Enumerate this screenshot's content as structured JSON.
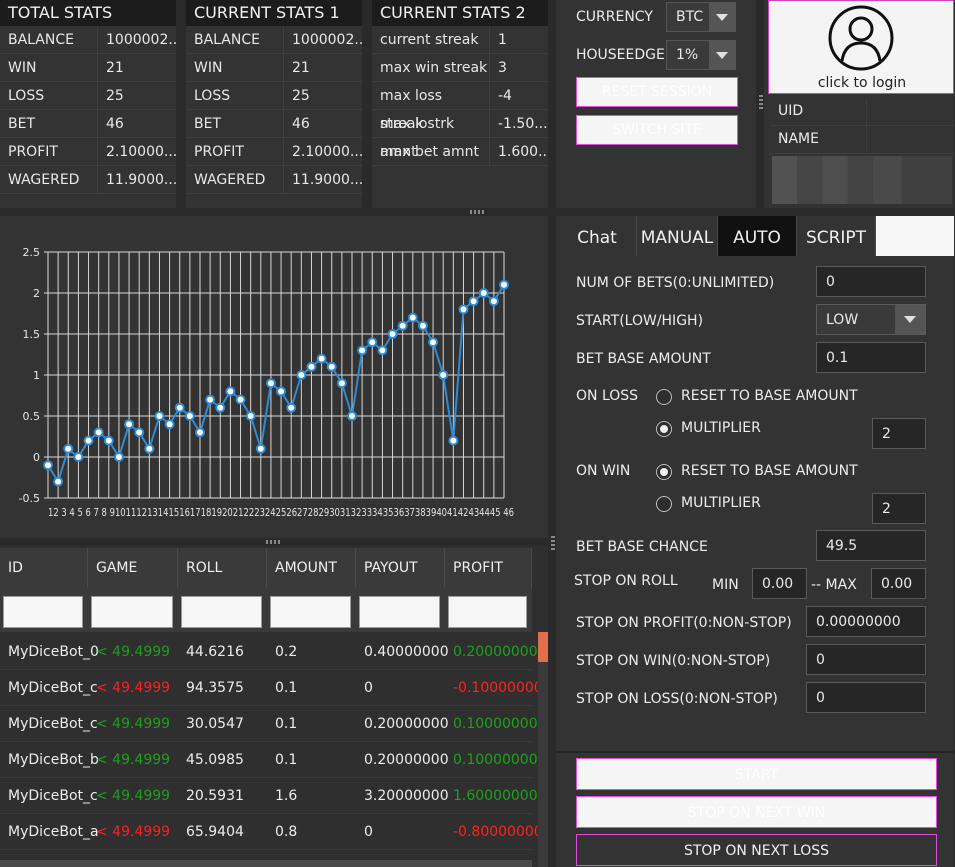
{
  "stats": {
    "total": {
      "title": "TOTAL STATS",
      "rows": [
        {
          "label": "BALANCE",
          "value": "1000002..."
        },
        {
          "label": "WIN",
          "value": "21"
        },
        {
          "label": "LOSS",
          "value": "25"
        },
        {
          "label": "BET",
          "value": "46"
        },
        {
          "label": "PROFIT",
          "value": "2.10000..."
        },
        {
          "label": "WAGERED",
          "value": "11.9000..."
        }
      ]
    },
    "current1": {
      "title": "CURRENT STATS 1",
      "rows": [
        {
          "label": "BALANCE",
          "value": "1000002..."
        },
        {
          "label": "WIN",
          "value": "21"
        },
        {
          "label": "LOSS",
          "value": "25"
        },
        {
          "label": "BET",
          "value": "46"
        },
        {
          "label": "PROFIT",
          "value": "2.10000..."
        },
        {
          "label": "WAGERED",
          "value": "11.9000..."
        }
      ]
    },
    "current2": {
      "title": "CURRENT STATS 2",
      "rows": [
        {
          "label": "current streak",
          "value": "1"
        },
        {
          "label": "max win streak",
          "value": "3"
        },
        {
          "label": "max loss streak",
          "value": "-4"
        },
        {
          "label": "max lostrk amnt",
          "value": "-1.50..."
        },
        {
          "label": "max bet amnt",
          "value": "1.600..."
        }
      ]
    }
  },
  "settings": {
    "currency_label": "CURRENCY",
    "currency_value": "BTC",
    "houseedge_label": "HOUSEEDGE",
    "houseedge_value": "1%",
    "reset_session": "RESET SESSION",
    "switch_site": "SWITCH SITE"
  },
  "account": {
    "login_text": "click to login",
    "uid_label": "UID",
    "name_label": "NAME"
  },
  "tabs": [
    "Chat",
    "MANUAL",
    "AUTO",
    "SCRIPT"
  ],
  "active_tab": "AUTO",
  "auto": {
    "num_bets_label": "NUM OF BETS(0:UNLIMITED)",
    "num_bets_value": "0",
    "start_label": "START(LOW/HIGH)",
    "start_value": "LOW",
    "bet_base_amount_label": "BET BASE AMOUNT",
    "bet_base_amount_value": "0.1",
    "on_loss_label": "ON LOSS",
    "on_loss_reset": "RESET TO BASE AMOUNT",
    "on_loss_multiplier": "MULTIPLIER",
    "on_loss_multiplier_value": "2",
    "on_win_label": "ON WIN",
    "on_win_reset": "RESET TO BASE AMOUNT",
    "on_win_multiplier": "MULTIPLIER",
    "on_win_multiplier_value": "2",
    "bet_base_chance_label": "BET BASE CHANCE",
    "bet_base_chance_value": "49.5",
    "stop_on_roll_label": "STOP ON ROLL",
    "min_label": "MIN",
    "min_value": "0.00",
    "max_label": "-- MAX",
    "max_value": "0.00",
    "stop_profit_label": "STOP ON PROFIT(0:NON-STOP)",
    "stop_profit_value": "0.00000000",
    "stop_win_label": "STOP ON WIN(0:NON-STOP)",
    "stop_win_value": "0",
    "stop_loss_label": "STOP ON LOSS(0:NON-STOP)",
    "stop_loss_value": "0",
    "start_button": "START",
    "stop_next_win": "STOP ON NEXT WIN",
    "stop_next_loss": "STOP ON NEXT LOSS"
  },
  "history": {
    "columns": [
      "ID",
      "GAME",
      "ROLL",
      "AMOUNT",
      "PAYOUT",
      "PROFIT"
    ],
    "rows": [
      {
        "id": "MyDiceBot_0",
        "game": "< 49.4999",
        "win": true,
        "roll": "44.6216",
        "amount": "0.2",
        "payout": "0.40000000",
        "profit": "0.20000000"
      },
      {
        "id": "MyDiceBot_c",
        "game": "< 49.4999",
        "win": false,
        "roll": "94.3575",
        "amount": "0.1",
        "payout": "0",
        "profit": "-0.10000000"
      },
      {
        "id": "MyDiceBot_c",
        "game": "< 49.4999",
        "win": true,
        "roll": "30.0547",
        "amount": "0.1",
        "payout": "0.20000000",
        "profit": "0.10000000"
      },
      {
        "id": "MyDiceBot_b",
        "game": "< 49.4999",
        "win": true,
        "roll": "45.0985",
        "amount": "0.1",
        "payout": "0.20000000",
        "profit": "0.10000000"
      },
      {
        "id": "MyDiceBot_c",
        "game": "< 49.4999",
        "win": true,
        "roll": "20.5931",
        "amount": "1.6",
        "payout": "3.20000000",
        "profit": "1.60000000"
      },
      {
        "id": "MyDiceBot_a",
        "game": "< 49.4999",
        "win": false,
        "roll": "65.9404",
        "amount": "0.8",
        "payout": "0",
        "profit": "-0.80000000"
      }
    ]
  },
  "chart_data": {
    "type": "line",
    "x": [
      1,
      2,
      3,
      4,
      5,
      6,
      7,
      8,
      9,
      10,
      11,
      12,
      13,
      14,
      15,
      16,
      17,
      18,
      19,
      20,
      21,
      22,
      23,
      24,
      25,
      26,
      27,
      28,
      29,
      30,
      31,
      32,
      33,
      34,
      35,
      36,
      37,
      38,
      39,
      40,
      41,
      42,
      43,
      44,
      45,
      46
    ],
    "x_tick_labels": "12 3 4 5 6 7 8 9101112131415161718192021222324252627282930313233343536373839404142434445 46",
    "values": [
      -0.1,
      -0.3,
      0.1,
      0,
      0.2,
      0.3,
      0.2,
      0,
      0.4,
      0.3,
      0.1,
      0.5,
      0.4,
      0.6,
      0.5,
      0.3,
      0.7,
      0.6,
      0.8,
      0.7,
      0.5,
      0.1,
      0.9,
      0.8,
      0.6,
      1.0,
      1.1,
      1.2,
      1.1,
      0.9,
      0.5,
      1.3,
      1.4,
      1.3,
      1.5,
      1.6,
      1.7,
      1.6,
      1.4,
      1.0,
      0.2,
      1.8,
      1.9,
      2.0,
      1.9,
      2.1
    ],
    "ylim": [
      -0.5,
      2.5
    ],
    "yticks": [
      "-0.5",
      "0",
      "0.5",
      "1",
      "1.5",
      "2",
      "2.5"
    ],
    "grid": true,
    "line_color": "#2e8bd6"
  }
}
